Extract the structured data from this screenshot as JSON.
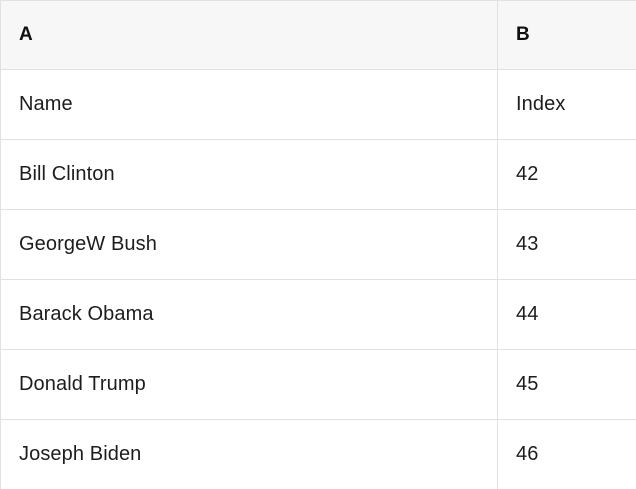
{
  "colors": {
    "header_bg": "#f7f7f7",
    "border": "#e1e1e1",
    "text": "#1d1d1d"
  },
  "table": {
    "column_letters": {
      "a": "A",
      "b": "B"
    },
    "rows": [
      {
        "a": "Name",
        "b": "Index"
      },
      {
        "a": "Bill Clinton",
        "b": "42"
      },
      {
        "a": "GeorgeW Bush",
        "b": "43"
      },
      {
        "a": "Barack Obama",
        "b": "44"
      },
      {
        "a": "Donald Trump",
        "b": "45"
      },
      {
        "a": "Joseph Biden",
        "b": "46"
      }
    ]
  }
}
